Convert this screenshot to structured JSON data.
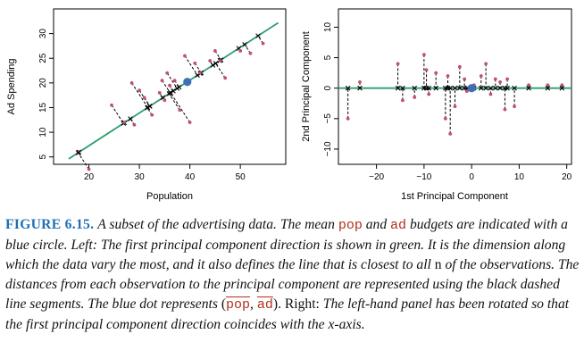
{
  "chart_data": [
    {
      "type": "scatter",
      "title": "",
      "xlabel": "Population",
      "ylabel": "Ad Spending",
      "xlim": [
        13,
        59
      ],
      "ylim": [
        3.5,
        35
      ],
      "xticks": [
        "20",
        "30",
        "40",
        "50"
      ],
      "yticks": [
        "5",
        "10",
        "15",
        "20",
        "25",
        "30"
      ],
      "mean": {
        "x": 39.5,
        "y": 20.2
      },
      "line": {
        "x": [
          16.0,
          57.5
        ],
        "y": [
          4.6,
          32.2
        ]
      },
      "series": [
        {
          "name": "observations",
          "x": [
            18,
            20,
            24.5,
            27,
            28.5,
            29,
            30,
            31,
            32.5,
            34,
            34.5,
            35,
            35.5,
            36,
            37,
            38,
            39,
            39.5,
            40,
            41,
            42,
            44,
            45,
            46,
            47,
            50,
            52,
            54.5
          ],
          "y": [
            6,
            2.5,
            15.5,
            12,
            20,
            11.5,
            18.5,
            17,
            13.5,
            18,
            20.5,
            16.5,
            22,
            19.5,
            20.5,
            14.5,
            25.5,
            20.5,
            12,
            24,
            22,
            24.5,
            26.5,
            24.5,
            21,
            26.5,
            26,
            28
          ]
        }
      ]
    },
    {
      "type": "scatter",
      "title": "",
      "xlabel": "1st Principal Component",
      "ylabel": "2nd Principal Component",
      "xlim": [
        -28,
        21
      ],
      "ylim": [
        -12.5,
        13
      ],
      "xticks": [
        "−20",
        "−10",
        "0",
        "10",
        "20"
      ],
      "yticks": [
        "−10",
        "−5",
        "0",
        "5",
        "10"
      ],
      "mean": {
        "x": 0,
        "y": 0
      },
      "line": {
        "x": [
          -28,
          21
        ],
        "y": [
          0,
          0
        ]
      },
      "series": [
        {
          "name": "observations",
          "x": [
            -26,
            -23.5,
            -15.5,
            -14.5,
            -12,
            -10,
            -9.5,
            -7.5,
            -5.5,
            -4.5,
            -3.5,
            -2.5,
            -1.5,
            -1,
            0.5,
            2,
            3,
            4,
            5,
            6,
            7,
            7.5,
            9,
            12,
            16,
            19,
            -5,
            -9
          ],
          "y": [
            -5,
            1,
            4,
            -2,
            -1.5,
            5.5,
            3,
            2.5,
            -5,
            -7.5,
            -3,
            3.5,
            1.5,
            -0.5,
            0.5,
            2,
            4,
            -1,
            1.5,
            1,
            -3.5,
            1.5,
            -3,
            0.5,
            0.5,
            0.5,
            2,
            -1
          ]
        }
      ]
    }
  ],
  "caption": {
    "label": "FIGURE 6.15.",
    "t1": "A subset of the advertising data. The mean",
    "code_pop": "pop",
    "t2": "and",
    "code_ad": "ad",
    "t3": "budgets are indicated with a blue circle. Left:",
    "t4": "The first principal component direction is shown in green. It is the dimension along which the data vary the most, and it also defines the line that is closest to all",
    "t5": "n",
    "t6": "of the observations. The distances from each observation to the principal component are represented using the black dashed line segments. The blue dot represents",
    "paren_open": "(",
    "code_pop_bar": "pop",
    "comma": ",",
    "code_ad_bar": "ad",
    "paren_close": ").",
    "t7": "Right:",
    "t8": "The left-hand panel has been rotated so that the first principal component direction coincides with the",
    "t9": "x",
    "t10": "-axis."
  },
  "colors": {
    "green": "#2e9e6f",
    "point": "#c0506e",
    "blue": "#3b6fb8",
    "caption_label": "#1f6fb5",
    "code": "#b0301a"
  }
}
